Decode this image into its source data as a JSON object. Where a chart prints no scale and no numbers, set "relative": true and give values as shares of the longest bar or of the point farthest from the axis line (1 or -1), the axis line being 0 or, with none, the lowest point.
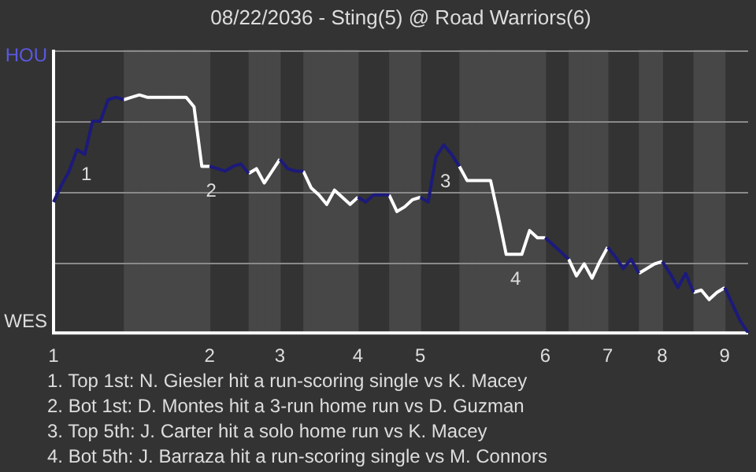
{
  "chart_data": {
    "type": "line",
    "title": "08/22/2036 - Sting(5) @ Road Warriors(6)",
    "relative": true,
    "categories": [
      "1",
      null,
      null,
      null,
      null,
      null,
      null,
      null,
      null,
      null,
      null,
      null,
      null,
      null,
      null,
      null,
      null,
      null,
      null,
      null,
      "2",
      null,
      null,
      null,
      null,
      null,
      null,
      null,
      null,
      "3",
      null,
      null,
      null,
      null,
      null,
      null,
      null,
      null,
      null,
      "4",
      null,
      null,
      null,
      null,
      null,
      null,
      null,
      "5",
      null,
      null,
      null,
      null,
      null,
      null,
      null,
      null,
      null,
      null,
      null,
      null,
      null,
      null,
      null,
      "6",
      null,
      null,
      null,
      null,
      null,
      null,
      null,
      "7",
      null,
      null,
      null,
      null,
      null,
      null,
      "8",
      null,
      null,
      null,
      null,
      null,
      null,
      null,
      "9",
      null,
      null,
      null
    ],
    "series": [
      {
        "color": "#1c1a7a",
        "values": [
          0.55,
          0.62,
          0.68,
          0.77,
          0.75,
          0.89,
          0.89,
          0.98,
          0.99,
          0.98,
          null,
          null,
          null,
          null,
          null,
          null,
          null,
          null,
          null,
          null,
          0.7,
          0.69,
          0.68,
          0.7,
          0.71,
          0.67,
          null,
          null,
          null,
          0.73,
          0.69,
          0.68,
          0.68,
          null,
          null,
          null,
          null,
          null,
          null,
          0.57,
          0.55,
          0.58,
          0.58,
          0.58,
          null,
          null,
          null,
          0.57,
          0.55,
          0.74,
          0.79,
          0.75,
          0.7,
          null,
          null,
          null,
          null,
          null,
          null,
          null,
          null,
          null,
          null,
          0.4,
          0.37,
          0.34,
          0.31,
          null,
          null,
          null,
          null,
          0.36,
          0.32,
          0.27,
          0.31,
          0.25,
          null,
          null,
          0.3,
          0.25,
          0.19,
          0.25,
          0.17,
          null,
          null,
          null,
          0.19,
          0.12,
          0.05,
          0
        ]
      },
      {
        "color": "#ffffff",
        "values": [
          null,
          null,
          null,
          null,
          null,
          null,
          null,
          null,
          null,
          0.98,
          0.99,
          1,
          0.99,
          0.99,
          0.99,
          0.99,
          0.99,
          0.99,
          0.95,
          0.7,
          0.7,
          null,
          null,
          null,
          null,
          0.67,
          0.69,
          0.63,
          0.68,
          0.73,
          null,
          null,
          0.68,
          0.61,
          0.58,
          0.54,
          0.6,
          0.57,
          0.54,
          0.57,
          null,
          null,
          null,
          0.58,
          0.51,
          0.53,
          0.56,
          0.57,
          null,
          null,
          null,
          null,
          0.7,
          0.64,
          0.64,
          0.64,
          0.64,
          0.49,
          0.33,
          0.33,
          0.33,
          0.43,
          0.4,
          0.4,
          null,
          null,
          0.31,
          0.24,
          0.29,
          0.23,
          0.3,
          0.36,
          null,
          null,
          null,
          0.25,
          0.27,
          0.29,
          0.3,
          null,
          null,
          null,
          0.17,
          0.18,
          0.14,
          0.17,
          0.19,
          null,
          null,
          null
        ]
      }
    ],
    "grid": "y",
    "legend": false,
    "marker": "none",
    "line_style": "solid",
    "annotations": [
      "HOU",
      "WES",
      {
        "text": "1",
        "y": 0.77
      },
      {
        "text": "2",
        "y": 0.7
      },
      {
        "text": "3",
        "y": 0.74
      },
      {
        "text": "4",
        "y": 0.33
      },
      "1. Top 1st: N. Giesler hit a run-scoring single vs K. Macey",
      "2. Bot 1st: D. Montes hit a 3-run home run vs D. Guzman",
      "3. Top 5th: J. Carter hit a solo home run vs K. Macey",
      "4. Bot 5th: J. Barraza hit a run-scoring single vs M. Connors"
    ]
  }
}
